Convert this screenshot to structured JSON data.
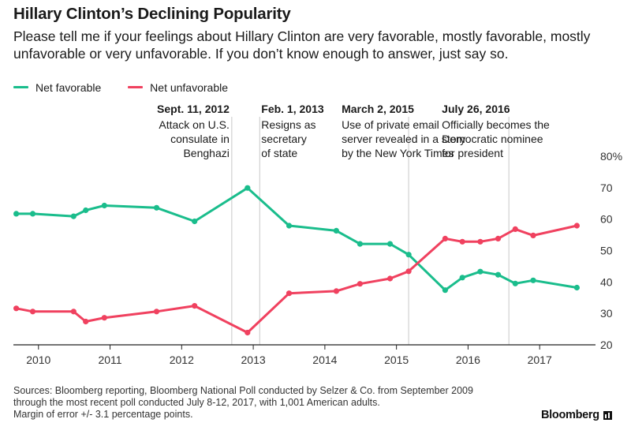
{
  "title": "Hillary Clinton’s Declining Popularity",
  "subtitle": "Please tell me if your feelings about Hillary Clinton are very favorable, mostly favorable, mostly unfavorable or very unfavorable. If you don’t know enough to answer, just say so.",
  "source": [
    "Sources: Bloomberg reporting, Bloomberg National Poll conducted by Selzer & Co. from September 2009",
    "through the most recent poll conducted July 8-12, 2017, with 1,001 American adults.",
    "Margin of error +/- 3.1 percentage points."
  ],
  "logo": "Bloomberg",
  "colors": {
    "favorable": "#1abd8c",
    "unfavorable": "#f0415f",
    "axis": "#222222",
    "ref_line": "#c8c8c8"
  },
  "chart_data": {
    "type": "line",
    "x_unit": "year",
    "xlim": [
      2009.65,
      2017.78
    ],
    "ylim": [
      20,
      80
    ],
    "x_ticks": [
      2010,
      2011,
      2012,
      2013,
      2014,
      2015,
      2016,
      2017
    ],
    "y_ticks": [
      20,
      30,
      40,
      50,
      60,
      70,
      80
    ],
    "y_tick_labels": [
      "20",
      "30",
      "40",
      "50",
      "60",
      "70",
      "80%"
    ],
    "grid": false,
    "legend_position": "top-left",
    "series": [
      {
        "name": "Net favorable",
        "color_key": "favorable",
        "points": [
          [
            2009.69,
            61.7
          ],
          [
            2009.92,
            61.7
          ],
          [
            2010.49,
            60.9
          ],
          [
            2010.66,
            62.8
          ],
          [
            2010.92,
            64.3
          ],
          [
            2011.65,
            63.6
          ],
          [
            2012.18,
            59.3
          ],
          [
            2012.92,
            69.9
          ],
          [
            2013.5,
            57.9
          ],
          [
            2014.16,
            56.3
          ],
          [
            2014.49,
            52.1
          ],
          [
            2014.91,
            52.1
          ],
          [
            2015.17,
            48.7
          ],
          [
            2015.68,
            37.4
          ],
          [
            2015.92,
            41.4
          ],
          [
            2016.17,
            43.3
          ],
          [
            2016.42,
            42.3
          ],
          [
            2016.66,
            39.5
          ],
          [
            2016.91,
            40.5
          ],
          [
            2017.52,
            38.2
          ]
        ]
      },
      {
        "name": "Net unfavorable",
        "color_key": "unfavorable",
        "points": [
          [
            2009.69,
            31.6
          ],
          [
            2009.92,
            30.6
          ],
          [
            2010.49,
            30.6
          ],
          [
            2010.66,
            27.4
          ],
          [
            2010.92,
            28.6
          ],
          [
            2011.65,
            30.6
          ],
          [
            2012.18,
            32.4
          ],
          [
            2012.92,
            23.9
          ],
          [
            2013.5,
            36.4
          ],
          [
            2014.16,
            37.1
          ],
          [
            2014.49,
            39.4
          ],
          [
            2014.91,
            41.1
          ],
          [
            2015.17,
            43.4
          ],
          [
            2015.68,
            53.8
          ],
          [
            2015.92,
            52.8
          ],
          [
            2016.17,
            52.8
          ],
          [
            2016.42,
            53.8
          ],
          [
            2016.66,
            56.8
          ],
          [
            2016.91,
            54.8
          ],
          [
            2017.52,
            57.9
          ]
        ]
      }
    ],
    "annotations": [
      {
        "x": 2012.7,
        "align": "right",
        "date": "Sept. 11, 2012",
        "text": [
          "Attack on U.S.",
          "consulate in",
          "Benghazi"
        ]
      },
      {
        "x": 2013.09,
        "align": "left",
        "date": "Feb. 1, 2013",
        "text": [
          "Resigns as",
          "secretary",
          "of state"
        ]
      },
      {
        "x": 2015.17,
        "align": "left-offset",
        "date": "March 2, 2015",
        "text": [
          "Use of private email",
          "server revealed in a story",
          "by the New York Times"
        ]
      },
      {
        "x": 2016.57,
        "align": "left-offset",
        "date": "July 26, 2016",
        "text": [
          "Officially becomes the",
          "Democratic nominee",
          "for president"
        ]
      }
    ]
  }
}
